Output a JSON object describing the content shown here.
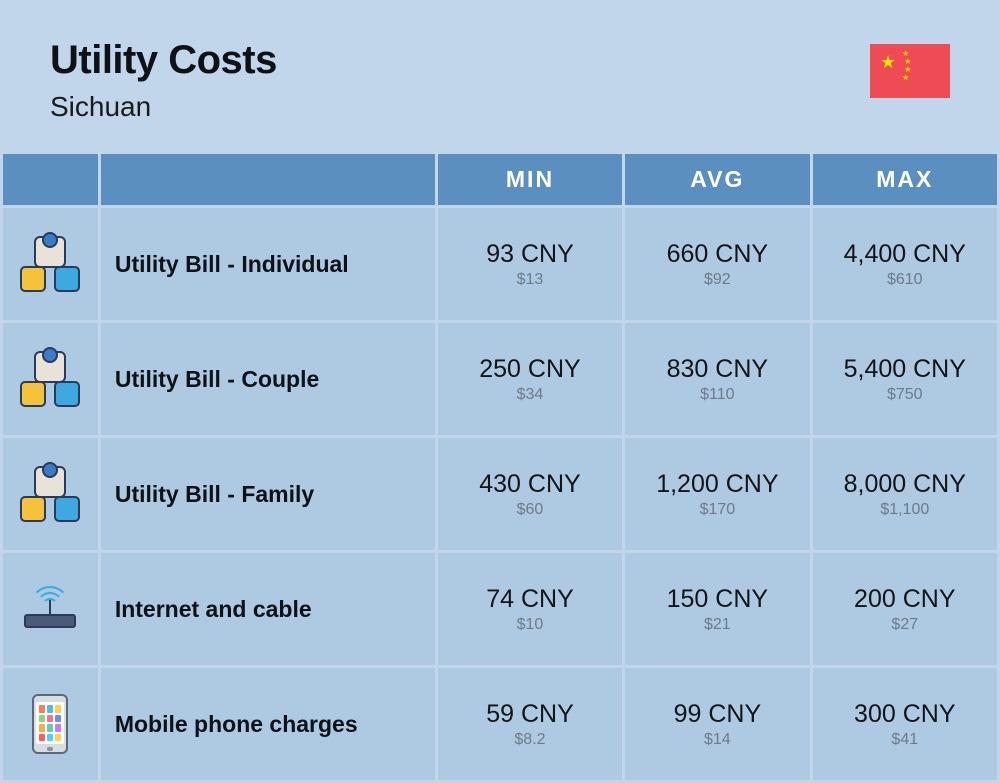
{
  "header": {
    "title": "Utility Costs",
    "subtitle": "Sichuan"
  },
  "columns": {
    "min": "MIN",
    "avg": "AVG",
    "max": "MAX"
  },
  "colors": {
    "page_bg": "#c1d6ea",
    "header_row_bg": "#5a8fbf",
    "header_row_text": "#ffffff",
    "cell_bg": "#aec9e2",
    "primary_text": "#121416",
    "secondary_text": "#6d7b88",
    "flag_bg": "#ee4b55",
    "flag_star": "#ffde00"
  },
  "phone_app_colors": [
    "#ff7a59",
    "#4ac1e0",
    "#ffd24a",
    "#8ad67a",
    "#ff6b9d",
    "#6b8cff",
    "#ffa94a",
    "#5ad1b0",
    "#c77dff",
    "#ff5a5a",
    "#4ad1ff",
    "#ffd24a"
  ],
  "rows": [
    {
      "icon": "utility",
      "label": "Utility Bill - Individual",
      "min_primary": "93 CNY",
      "min_secondary": "$13",
      "avg_primary": "660 CNY",
      "avg_secondary": "$92",
      "max_primary": "4,400 CNY",
      "max_secondary": "$610"
    },
    {
      "icon": "utility",
      "label": "Utility Bill - Couple",
      "min_primary": "250 CNY",
      "min_secondary": "$34",
      "avg_primary": "830 CNY",
      "avg_secondary": "$110",
      "max_primary": "5,400 CNY",
      "max_secondary": "$750"
    },
    {
      "icon": "utility",
      "label": "Utility Bill - Family",
      "min_primary": "430 CNY",
      "min_secondary": "$60",
      "avg_primary": "1,200 CNY",
      "avg_secondary": "$170",
      "max_primary": "8,000 CNY",
      "max_secondary": "$1,100"
    },
    {
      "icon": "router",
      "label": "Internet and cable",
      "min_primary": "74 CNY",
      "min_secondary": "$10",
      "avg_primary": "150 CNY",
      "avg_secondary": "$21",
      "max_primary": "200 CNY",
      "max_secondary": "$27"
    },
    {
      "icon": "phone",
      "label": "Mobile phone charges",
      "min_primary": "59 CNY",
      "min_secondary": "$8.2",
      "avg_primary": "99 CNY",
      "avg_secondary": "$14",
      "max_primary": "300 CNY",
      "max_secondary": "$41"
    }
  ]
}
